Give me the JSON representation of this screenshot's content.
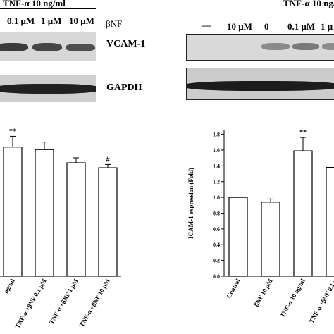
{
  "left_panel": {
    "treatment_header": "TNF-α 10 ng/ml",
    "agent_label": "βNF",
    "dose_labels": [
      "0.1 μM",
      "1 μM",
      "10 μM"
    ],
    "blot_labels": [
      "VCAM-1",
      "GAPDH"
    ]
  },
  "right_panel": {
    "treatment_header": "TNF-α 10 ng/ml",
    "dose_labels": [
      "—",
      "10 μM",
      "0",
      "0.1 μM",
      "1 μ"
    ]
  },
  "chart_data": [
    {
      "type": "bar",
      "panel": "left",
      "categories": [
        "ng/ml",
        "TNF-α +βNF 0.1 μM",
        "TNF-α +βNF 1 μM",
        "TNF-α +βNF 10 μM"
      ],
      "values": [
        1.56,
        1.53,
        1.37,
        1.31
      ],
      "errors": [
        0.13,
        0.09,
        0.06,
        0.04
      ],
      "significance": [
        "**",
        "",
        "",
        "#"
      ],
      "ylim": [
        0,
        2.0
      ],
      "xlabel": "",
      "ylabel": "",
      "title": ""
    },
    {
      "type": "bar",
      "panel": "right",
      "categories": [
        "Control",
        "βNF 10 μM",
        "TNF-α 10 ng/ml",
        "TNF-α +βNF 0.1 μ"
      ],
      "values": [
        1.0,
        0.94,
        1.59,
        1.38
      ],
      "errors": [
        0,
        0.04,
        0.17,
        0
      ],
      "significance": [
        "",
        "",
        "**",
        ""
      ],
      "ylabel": "ICAM-1 expression (Fold)",
      "yticks": [
        "0.0",
        "0.2",
        "0.4",
        "0.6",
        "0.8",
        "1.0",
        "1.2",
        "1.4",
        "1.6",
        "1.8"
      ],
      "ylim": [
        0,
        1.85
      ],
      "xlabel": "",
      "title": ""
    }
  ]
}
